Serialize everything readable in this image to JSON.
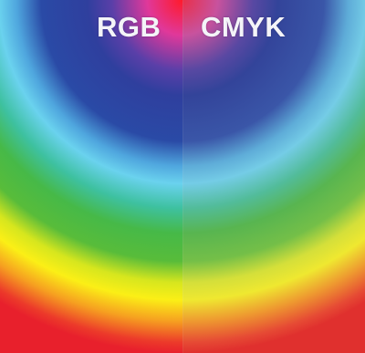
{
  "labels": {
    "left": "RGB",
    "right": "CMYK"
  },
  "colors": {
    "red": "#e4242c",
    "magenta": "#d0459a",
    "blue": "#2f3f98",
    "cyan": "#4cc0e8",
    "green": "#4cb848",
    "yellow": "#f2ec1c",
    "orange": "#ee7b22"
  }
}
